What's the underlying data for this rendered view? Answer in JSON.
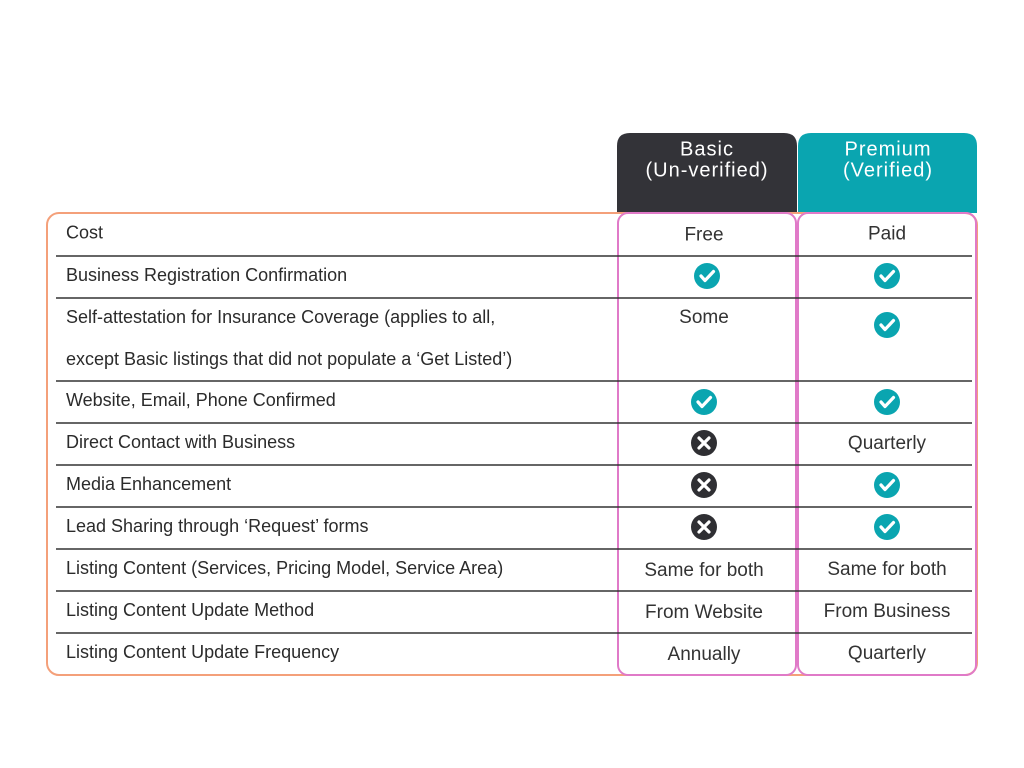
{
  "header": {
    "basic": [
      "Basic",
      "(Un-verified)"
    ],
    "premium": [
      "Premium",
      "(Verified)"
    ]
  },
  "table": {
    "rows": [
      {
        "feature": [
          "Cost"
        ],
        "basic": "Free",
        "premium": "Paid"
      },
      {
        "feature": [
          "Business Registration Confirmation"
        ]
      },
      {
        "feature": [
          "Self-attestation for Insurance Coverage (applies to all,",
          "except Basic listings that did not populate a ‘Get Listed’)"
        ],
        "basic": "Some"
      },
      {
        "feature": [
          "Website, Email, Phone Confirmed"
        ]
      },
      {
        "feature": [
          "Direct Contact with Business"
        ],
        "premium": "Quarterly"
      },
      {
        "feature": [
          "Media Enhancement"
        ]
      },
      {
        "feature": [
          "Lead Sharing through ‘Request’ forms"
        ]
      },
      {
        "feature": [
          "Listing Content (Services, Pricing Model, Service Area)"
        ],
        "basic": "Same for both",
        "premium": "Same for both"
      },
      {
        "feature": [
          "Listing Content Update Method"
        ],
        "basic": "From Website",
        "premium": "From Business"
      },
      {
        "feature": [
          "Listing Content Update Frequency"
        ],
        "basic": "Annually",
        "premium": "Quarterly"
      }
    ]
  }
}
